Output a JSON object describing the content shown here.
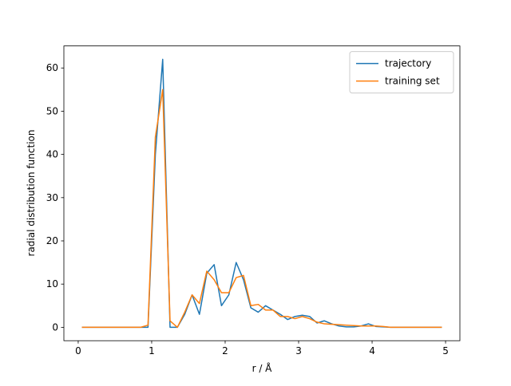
{
  "chart_data": {
    "type": "line",
    "xlabel": "r / Å",
    "ylabel": "radial distribution function",
    "x": [
      0.05,
      0.15,
      0.25,
      0.35,
      0.45,
      0.55,
      0.65,
      0.75,
      0.85,
      0.95,
      1.05,
      1.15,
      1.25,
      1.35,
      1.45,
      1.55,
      1.65,
      1.75,
      1.85,
      1.95,
      2.05,
      2.15,
      2.25,
      2.35,
      2.45,
      2.55,
      2.65,
      2.75,
      2.85,
      2.95,
      3.05,
      3.15,
      3.25,
      3.35,
      3.45,
      3.55,
      3.65,
      3.75,
      3.85,
      3.95,
      4.05,
      4.15,
      4.25,
      4.35,
      4.45,
      4.55,
      4.65,
      4.75,
      4.85,
      4.95
    ],
    "series": [
      {
        "name": "trajectory",
        "color": "#1f77b4",
        "values": [
          0,
          0,
          0,
          0,
          0,
          0,
          0,
          0,
          0,
          0,
          40,
          62,
          0,
          0,
          3,
          7.5,
          3,
          12.5,
          14.5,
          5,
          7.5,
          15,
          11,
          4.5,
          3.5,
          5,
          4,
          3,
          1.8,
          2.5,
          2.8,
          2.5,
          1,
          1.5,
          0.8,
          0.3,
          0.1,
          0.1,
          0.3,
          0.8,
          0.2,
          0.1,
          0,
          0,
          0,
          0,
          0,
          0,
          0,
          0
        ]
      },
      {
        "name": "training set",
        "color": "#ff7f0e",
        "values": [
          0,
          0,
          0,
          0,
          0,
          0,
          0,
          0,
          0,
          0.5,
          44,
          55,
          1.5,
          0,
          3.5,
          7.5,
          5.5,
          13,
          11,
          8,
          8,
          11.5,
          12,
          5,
          5.3,
          4,
          4,
          2.5,
          2.5,
          2,
          2.5,
          2,
          1.2,
          0.8,
          0.7,
          0.6,
          0.5,
          0.4,
          0.3,
          0.3,
          0.3,
          0.2,
          0,
          0,
          0,
          0,
          0,
          0,
          0,
          0
        ]
      }
    ],
    "xlim": [
      -0.195,
      5.195
    ],
    "xticks": [
      0,
      1,
      2,
      3,
      4,
      5
    ],
    "ylim": [
      -3.1,
      65.1
    ],
    "yticks": [
      0,
      10,
      20,
      30,
      40,
      50,
      60
    ],
    "legend": "upper right"
  }
}
